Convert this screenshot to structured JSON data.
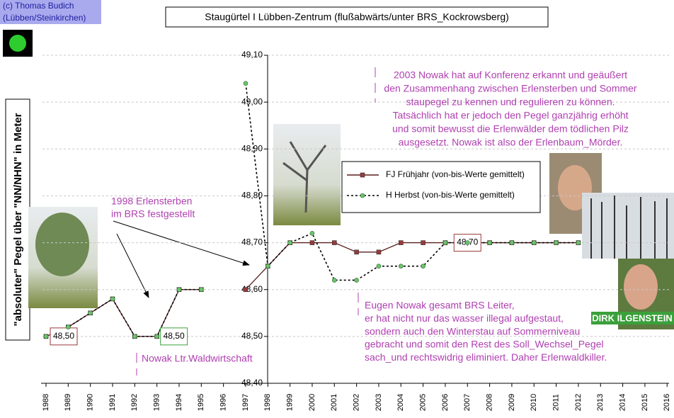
{
  "chart_data": {
    "type": "line",
    "title": "Staugürtel I Lübben-Zentrum (flußabwärts/unter BRS_Kockrowsberg)",
    "copyright": [
      "(c) Thomas Budich",
      "(Lübben/Steinkirchen)"
    ],
    "ylabel": "\"absoluter\" Pegel über \"NN/NHN\" in Meter",
    "categories": [
      "1988",
      "1989",
      "1990",
      "1991",
      "1992",
      "1993",
      "1994",
      "1995",
      "1996",
      "1997",
      "1998",
      "1999",
      "2000",
      "2001",
      "2002",
      "2003",
      "2004",
      "2005",
      "2006",
      "2007",
      "2008",
      "2009",
      "2010",
      "2011",
      "2012",
      "2013",
      "2014",
      "2015",
      "2016"
    ],
    "series": [
      {
        "name": "FJ Frühjahr (von-bis-Werte gemittelt)",
        "color": "#9a3a3a",
        "values": [
          48.5,
          48.52,
          48.55,
          48.58,
          48.5,
          48.5,
          48.6,
          48.6,
          null,
          48.6,
          48.65,
          48.7,
          48.7,
          48.7,
          48.68,
          48.68,
          48.7,
          48.7,
          48.7,
          48.7,
          48.7,
          48.7,
          48.7,
          48.7,
          48.7,
          null,
          null,
          null,
          null
        ],
        "value_labels": [
          "48,50",
          null,
          null,
          null,
          null,
          null,
          null,
          null,
          null,
          null,
          null,
          null,
          null,
          null,
          null,
          null,
          null,
          null,
          null,
          "48,70",
          null,
          null,
          null,
          null,
          null,
          null,
          null,
          null,
          null
        ]
      },
      {
        "name": "H Herbst (von-bis-Werte gemittelt)",
        "color": "#6cc46c",
        "values": [
          48.5,
          48.52,
          48.55,
          48.58,
          48.5,
          48.5,
          48.6,
          48.6,
          null,
          49.04,
          48.65,
          48.7,
          48.72,
          48.62,
          48.62,
          48.65,
          48.65,
          48.65,
          48.7,
          48.7,
          48.7,
          48.7,
          48.7,
          48.7,
          48.7,
          null,
          null,
          null,
          null
        ],
        "value_labels": [
          null,
          null,
          null,
          null,
          null,
          "48,50",
          null,
          null,
          null,
          null,
          null,
          null,
          null,
          null,
          null,
          null,
          null,
          null,
          null,
          null,
          null,
          null,
          null,
          null,
          null,
          null,
          null,
          null,
          null
        ]
      }
    ],
    "ylim": [
      48.4,
      49.1
    ],
    "yticks": [
      {
        "value": 48.4,
        "label": "48,40"
      },
      {
        "value": 48.5,
        "label": "48,50"
      },
      {
        "value": 48.6,
        "label": "48,60"
      },
      {
        "value": 48.7,
        "label": "48,70"
      },
      {
        "value": 48.8,
        "label": "48,80"
      },
      {
        "value": 48.9,
        "label": "48,90"
      },
      {
        "value": 49.0,
        "label": "49,00"
      },
      {
        "value": 49.1,
        "label": "49,10"
      }
    ],
    "grid": true,
    "annotations": {
      "erlensterben": [
        "1998 Erlensterben",
        "im BRS festgestellt"
      ],
      "konferenz": [
        "2003 Nowak hat auf Konferenz erkannt und geäußert",
        "den Zusammenhang zwischen Erlensterben und Sommer",
        "staupegel zu kennen und regulieren zu können.",
        "Tatsächlich hat er jedoch den Pegel ganzjährig erhöht",
        "und somit bewusst die Erlenwälder dem tödlichen Pilz",
        "ausgesetzt. Nowak ist also der Erlenbaum_Mörder."
      ],
      "leiter": [
        "Eugen Nowak gesamt BRS Leiter,",
        "er hat nicht nur das wasser illegal aufgestaut,",
        "sondern auch den Winterstau auf Sommerniveau",
        "gebracht und somit den Rest des Soll_Wechsel_Pegel",
        "sach_und rechtswidrig eliminiert. Daher Erlenwaldkiller."
      ],
      "waldwirtschaft": "Nowak Ltr.Waldwirtschaft",
      "photo_caption": "DIRK ILGENSTEIN"
    }
  }
}
